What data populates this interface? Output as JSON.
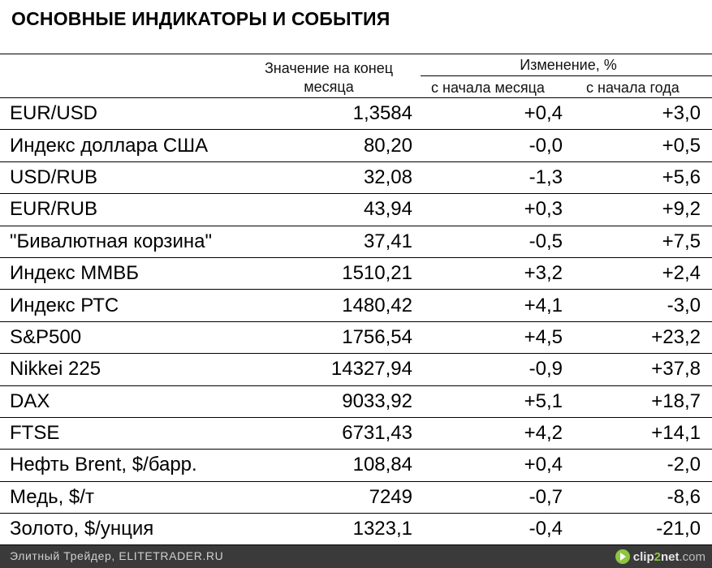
{
  "title": "ОСНОВНЫЕ ИНДИКАТОРЫ И СОБЫТИЯ",
  "header": {
    "value_line1": "Значение на конец",
    "value_line2": "месяца",
    "change_group": "Изменение, %",
    "since_month": "с начала месяца",
    "since_year": "с начала года"
  },
  "rows": [
    {
      "name": "EUR/USD",
      "value": "1,3584",
      "month": "+0,4",
      "year": "+3,0"
    },
    {
      "name": "Индекс доллара США",
      "value": "80,20",
      "month": "-0,0",
      "year": "+0,5"
    },
    {
      "name": "USD/RUB",
      "value": "32,08",
      "month": "-1,3",
      "year": "+5,6"
    },
    {
      "name": "EUR/RUB",
      "value": "43,94",
      "month": "+0,3",
      "year": "+9,2"
    },
    {
      "name": "\"Бивалютная корзина\"",
      "value": "37,41",
      "month": "-0,5",
      "year": "+7,5"
    },
    {
      "name": "Индекс ММВБ",
      "value": "1510,21",
      "month": "+3,2",
      "year": "+2,4"
    },
    {
      "name": "Индекс РТС",
      "value": "1480,42",
      "month": "+4,1",
      "year": "-3,0"
    },
    {
      "name": "S&P500",
      "value": "1756,54",
      "month": "+4,5",
      "year": "+23,2"
    },
    {
      "name": "Nikkei 225",
      "value": "14327,94",
      "month": "-0,9",
      "year": "+37,8"
    },
    {
      "name": "DAX",
      "value": "9033,92",
      "month": "+5,1",
      "year": "+18,7"
    },
    {
      "name": "FTSE",
      "value": "6731,43",
      "month": "+4,2",
      "year": "+14,1"
    },
    {
      "name": "Нефть Brent, $/барр.",
      "value": "108,84",
      "month": "+0,4",
      "year": "-2,0"
    },
    {
      "name": "Медь, $/т",
      "value": "7249",
      "month": "-0,7",
      "year": "-8,6"
    },
    {
      "name": "Золото, $/унция",
      "value": "1323,1",
      "month": "-0,4",
      "year": "-21,0"
    }
  ],
  "footer": {
    "credit": "Элитный Трейдер, ELITETRADER.RU",
    "logo_prefix": "clip",
    "logo_two": "2",
    "logo_suffix": "net",
    "logo_domain": ".com"
  },
  "colors": {
    "footer_bg": "#3a3a3a",
    "logo_accent": "#8dc63f"
  }
}
